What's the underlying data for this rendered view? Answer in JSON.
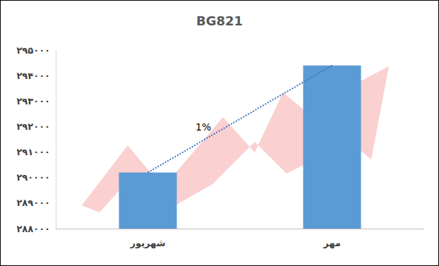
{
  "chart_data": {
    "type": "bar",
    "title": "BG821",
    "categories": [
      "شهریور",
      "مهر"
    ],
    "series": [
      {
        "type": "bar",
        "color": "#5b9bd5",
        "values": [
          290200,
          294400
        ]
      },
      {
        "type": "line",
        "color": "#4472c4",
        "line_style": "dotted",
        "values": [
          290200,
          294400
        ]
      }
    ],
    "ylim": [
      288000,
      295000
    ],
    "yticks": [
      {
        "value": 288000,
        "label": "۲۸۸۰۰۰"
      },
      {
        "value": 289000,
        "label": "۲۸۹۰۰۰"
      },
      {
        "value": 290000,
        "label": "۲۹۰۰۰۰"
      },
      {
        "value": 291000,
        "label": "۲۹۱۰۰۰"
      },
      {
        "value": 292000,
        "label": "۲۹۲۰۰۰"
      },
      {
        "value": 293000,
        "label": "۲۹۳۰۰۰"
      },
      {
        "value": 294000,
        "label": "۲۹۴۰۰۰"
      },
      {
        "value": 295000,
        "label": "۲۹۵۰۰۰"
      }
    ],
    "annotations": [
      {
        "text": "1%"
      }
    ],
    "grid": false
  }
}
